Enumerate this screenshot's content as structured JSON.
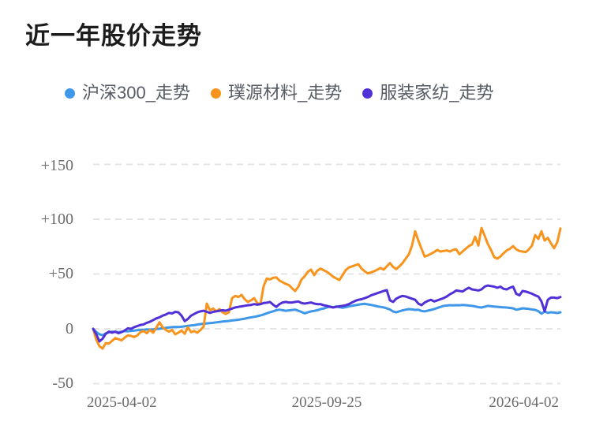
{
  "title": {
    "text": "近一年股价走势"
  },
  "legend": {
    "items": [
      {
        "label": "沪深300_走势",
        "color": "#3e97e8"
      },
      {
        "label": "璞源材料_走势",
        "color": "#f8941d"
      },
      {
        "label": "服装家纺_走势",
        "color": "#5230d8"
      }
    ]
  },
  "chart_data": {
    "type": "line",
    "title": "近一年股价走势",
    "xlabel": "",
    "ylabel": "",
    "ylim": [
      -50,
      150
    ],
    "grid": "horizontal-dashed",
    "grid_color": "#e4e4e4",
    "axis_label_color": "#6b6b6b",
    "legend_position": "top",
    "x_tick_labels": [
      "2025-04-02",
      "2025-09-25",
      "2026-04-02"
    ],
    "y_tick_labels": [
      "+150",
      "+100",
      "+50",
      "0",
      "-50"
    ],
    "y_tick_values": [
      150,
      100,
      50,
      0,
      -50
    ],
    "series": [
      {
        "name": "沪深300_走势",
        "color": "#3e97e8",
        "values": [
          0,
          -3,
          -5,
          -5.8,
          -4.2,
          -3.2,
          -2.6,
          -2.9,
          -3.1,
          -2.6,
          -2.1,
          -2.3,
          -1.9,
          -1.6,
          -1.3,
          -1.1,
          -0.9,
          -0.6,
          -0.7,
          -0.5,
          -0.2,
          0.1,
          0.4,
          0.9,
          1.2,
          1.5,
          1.7,
          1.6,
          1.9,
          2.3,
          2.7,
          3,
          3.3,
          3.9,
          4.3,
          4.7,
          5,
          5.2,
          5.5,
          5.9,
          6.3,
          6.6,
          6.9,
          7.2,
          7.6,
          7.9,
          8.3,
          8.8,
          9.3,
          9.9,
          10.4,
          10.9,
          11.5,
          12.2,
          13.1,
          14.2,
          15.2,
          16,
          17,
          17.5,
          17,
          16.5,
          16.8,
          17.2,
          17.5,
          16.5,
          15.4,
          14.1,
          15,
          15.9,
          16.3,
          17,
          18,
          18.5,
          19.5,
          20.5,
          19.5,
          20.5,
          19.8,
          19.2,
          19.8,
          20.5,
          21,
          21.5,
          22,
          22.5,
          22.8,
          22.3,
          21.8,
          21.2,
          20.5,
          20,
          19.6,
          18.6,
          17.6,
          15.8,
          15,
          16,
          16.8,
          17.5,
          18,
          17.7,
          17.3,
          17.4,
          16.3,
          15.9,
          16.6,
          17.3,
          18,
          19,
          20,
          20.9,
          21.2,
          21.6,
          21.4,
          21.6,
          21.5,
          21.7,
          21.6,
          21.2,
          20.9,
          20.4,
          19.8,
          19.4,
          20.2,
          20.9,
          20.6,
          20.3,
          20.1,
          19.8,
          19.6,
          19.4,
          19.1,
          18.7,
          17.4,
          18,
          18.7,
          18.4,
          18.1,
          17.6,
          17.3,
          16.1,
          13.8,
          15.8,
          14.5,
          15.1,
          14.8,
          14.4,
          15.1
        ]
      },
      {
        "name": "璞源材料_走势",
        "color": "#f8941d",
        "values": [
          0,
          -10,
          -16,
          -18,
          -13,
          -13.5,
          -11,
          -8.5,
          -9.5,
          -10.5,
          -8,
          -6,
          -6.5,
          -7.5,
          -6,
          -3,
          -2,
          -4,
          -1,
          -3.5,
          1,
          6,
          1.5,
          -1,
          -2.5,
          -1,
          -5,
          -3.5,
          -1.5,
          -4.5,
          1.5,
          -3,
          -2,
          -3.5,
          -1,
          2,
          23,
          17,
          18.5,
          16,
          18,
          15,
          13.5,
          15,
          28,
          30,
          29,
          31,
          27,
          24.5,
          26,
          28,
          23.5,
          22.5,
          39,
          46,
          45,
          46.5,
          47,
          44,
          42.5,
          41,
          40,
          37,
          34.5,
          38.5,
          45,
          48,
          52,
          54,
          49,
          53,
          55,
          53.5,
          52,
          50,
          47.5,
          46,
          44.5,
          49,
          53.5,
          56,
          57,
          58,
          59,
          55,
          52.5,
          50.5,
          51.5,
          52.5,
          54,
          55.5,
          54,
          57,
          60,
          56.5,
          54.5,
          57,
          60,
          64,
          68,
          76,
          89,
          80.5,
          73,
          66,
          67,
          68.5,
          70,
          72,
          70.5,
          71,
          71.5,
          70.5,
          72,
          72.5,
          68,
          70.5,
          73,
          75.5,
          77,
          84,
          76,
          92,
          85,
          77.5,
          72,
          65.5,
          64,
          66,
          69,
          71.5,
          73,
          75.5,
          72.5,
          71,
          70.5,
          70,
          72.5,
          76,
          85.5,
          82,
          89,
          80.5,
          83,
          78,
          73.5,
          79,
          91.5
        ]
      },
      {
        "name": "服装家纺_走势",
        "color": "#5230d8",
        "values": [
          0,
          -5,
          -11.5,
          -9,
          -4.5,
          -2.5,
          -3.5,
          -2.5,
          -4,
          -3,
          -1.5,
          0.5,
          0,
          1.5,
          2.5,
          3.5,
          4,
          5.5,
          6.5,
          8,
          9.5,
          10.5,
          12,
          13,
          14.5,
          14,
          15.5,
          15,
          12,
          7,
          9,
          12,
          13.5,
          15,
          16,
          16.5,
          15.5,
          14.5,
          15.5,
          16,
          16.5,
          17,
          16.5,
          17.5,
          18.5,
          19.5,
          20,
          20.5,
          21,
          21.5,
          21.8,
          22.5,
          22,
          22.5,
          23.5,
          23.8,
          24.5,
          22,
          20,
          22.5,
          24,
          24.5,
          24,
          24,
          24.5,
          25,
          23.5,
          23,
          23.5,
          24,
          23,
          22.5,
          22.5,
          21.5,
          21,
          20,
          19.5,
          20,
          20.5,
          21,
          21.5,
          22.5,
          24,
          25.5,
          26.5,
          27,
          28,
          29,
          30.5,
          31.5,
          32.5,
          33.5,
          34.5,
          35.3,
          26,
          24.5,
          27.5,
          29,
          30,
          29.5,
          28.5,
          27.5,
          26.5,
          23,
          21.5,
          24,
          25.5,
          26.5,
          25,
          26,
          27,
          28,
          29.5,
          31.5,
          33,
          35,
          34.5,
          34,
          36,
          37.5,
          36,
          35.5,
          35,
          36,
          38.5,
          39.5,
          39,
          38.5,
          37.5,
          38.5,
          36.5,
          36,
          37.5,
          38.5,
          32,
          30.5,
          34.5,
          34,
          33,
          32,
          30.5,
          29.5,
          25,
          16,
          26.5,
          28.5,
          28.5,
          28,
          29
        ]
      }
    ]
  }
}
